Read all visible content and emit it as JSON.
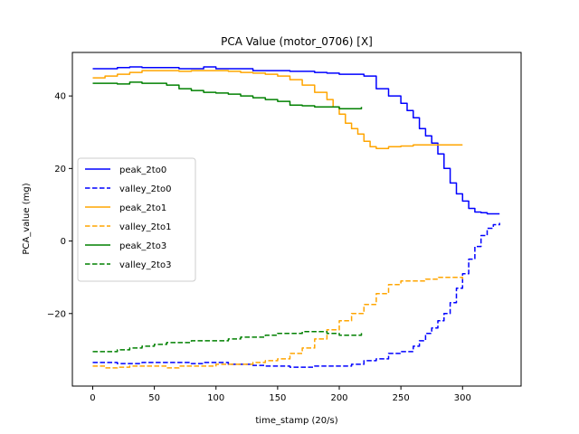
{
  "chart_data": {
    "type": "line",
    "title": "PCA Value (motor_0706) [X]",
    "xlabel": "time_stamp (20/s)",
    "ylabel": "PCA_value (mg)",
    "xlim": [
      -16.5,
      347.5
    ],
    "ylim": [
      -40,
      52
    ],
    "xticks": [
      0,
      50,
      100,
      150,
      200,
      250,
      300
    ],
    "yticks": [
      -20,
      0,
      20,
      40
    ],
    "ytick_labels": [
      "−20",
      "0",
      "20",
      "40"
    ],
    "grid": false,
    "legend_placement": "center-left",
    "series": [
      {
        "name": "peak_2to0",
        "color": "#0000ff",
        "dash": "solid",
        "x": [
          0,
          10,
          20,
          30,
          40,
          50,
          60,
          70,
          80,
          90,
          100,
          110,
          120,
          130,
          140,
          150,
          160,
          170,
          180,
          190,
          200,
          210,
          220,
          230,
          240,
          250,
          255,
          260,
          265,
          270,
          275,
          280,
          285,
          290,
          295,
          300,
          305,
          310,
          315,
          320,
          325,
          330
        ],
        "y": [
          47.5,
          47.5,
          47.8,
          48,
          47.8,
          47.8,
          47.8,
          47.5,
          47.5,
          48,
          47.5,
          47.5,
          47.5,
          47,
          47,
          47,
          46.8,
          46.8,
          46.5,
          46.3,
          46,
          46,
          45.5,
          42,
          40,
          38,
          36,
          34,
          31,
          29,
          27,
          24,
          20,
          16,
          13,
          11,
          9,
          8,
          7.8,
          7.5,
          7.5,
          7.5
        ]
      },
      {
        "name": "valley_2to0",
        "color": "#0000ff",
        "dash": "dashed",
        "x": [
          0,
          10,
          20,
          30,
          40,
          50,
          60,
          70,
          80,
          90,
          100,
          110,
          120,
          130,
          140,
          150,
          160,
          170,
          180,
          190,
          200,
          210,
          220,
          230,
          240,
          250,
          260,
          265,
          270,
          275,
          280,
          285,
          290,
          295,
          300,
          305,
          310,
          315,
          320,
          325,
          330
        ],
        "y": [
          -33.5,
          -33.5,
          -33.8,
          -33.8,
          -33.5,
          -33.5,
          -33.5,
          -33.5,
          -33.8,
          -33.5,
          -33.5,
          -34,
          -34,
          -34.3,
          -34.5,
          -34.5,
          -34.8,
          -34.8,
          -34.5,
          -34.5,
          -34.5,
          -34,
          -33,
          -32.5,
          -31,
          -30.5,
          -29,
          -27.5,
          -25.5,
          -24,
          -22,
          -20,
          -17,
          -13,
          -9,
          -5,
          -1.5,
          1.5,
          3.5,
          4.5,
          5
        ]
      },
      {
        "name": "peak_2to1",
        "color": "#ffa500",
        "dash": "solid",
        "x": [
          0,
          10,
          20,
          30,
          40,
          50,
          60,
          70,
          80,
          90,
          100,
          110,
          120,
          130,
          140,
          150,
          160,
          170,
          180,
          190,
          195,
          200,
          205,
          210,
          215,
          220,
          225,
          230,
          240,
          250,
          260,
          270,
          280,
          290,
          300
        ],
        "y": [
          45,
          45.5,
          46,
          46.5,
          47,
          47,
          47,
          46.8,
          47,
          47,
          47,
          46.8,
          46.5,
          46.3,
          46,
          45.5,
          44.5,
          43,
          41,
          39,
          37,
          35,
          32.5,
          31,
          29.5,
          27.5,
          26,
          25.5,
          26,
          26.2,
          26.5,
          26.5,
          26.5,
          26.5,
          26.5
        ]
      },
      {
        "name": "valley_2to1",
        "color": "#ffa500",
        "dash": "dashed",
        "x": [
          0,
          10,
          20,
          30,
          40,
          50,
          60,
          70,
          80,
          90,
          100,
          110,
          120,
          130,
          140,
          150,
          160,
          170,
          180,
          190,
          200,
          210,
          220,
          230,
          240,
          250,
          260,
          270,
          280,
          290,
          300
        ],
        "y": [
          -34.5,
          -35,
          -34.8,
          -34.5,
          -34.5,
          -34.5,
          -35,
          -34.5,
          -34.5,
          -34.5,
          -34,
          -34,
          -34,
          -33.5,
          -33,
          -32.5,
          -31,
          -29.5,
          -27,
          -24.5,
          -22,
          -20,
          -17.5,
          -14.5,
          -12,
          -11,
          -11,
          -10.5,
          -10,
          -10,
          -10.5
        ]
      },
      {
        "name": "peak_2to3",
        "color": "#008000",
        "dash": "solid",
        "x": [
          0,
          10,
          20,
          30,
          40,
          50,
          60,
          70,
          80,
          90,
          100,
          110,
          120,
          130,
          140,
          150,
          160,
          170,
          180,
          190,
          200,
          210,
          218
        ],
        "y": [
          43.5,
          43.5,
          43.3,
          43.8,
          43.5,
          43.5,
          43,
          42,
          41.5,
          41,
          40.8,
          40.5,
          40,
          39.5,
          39,
          38.5,
          37.5,
          37.3,
          37,
          37,
          36.5,
          36.5,
          37
        ]
      },
      {
        "name": "valley_2to3",
        "color": "#008000",
        "dash": "dashed",
        "x": [
          0,
          10,
          20,
          30,
          40,
          50,
          60,
          70,
          80,
          90,
          100,
          110,
          120,
          130,
          140,
          150,
          160,
          170,
          180,
          190,
          200,
          210,
          218
        ],
        "y": [
          -30.5,
          -30.5,
          -30,
          -29.5,
          -29,
          -28.5,
          -28,
          -28,
          -27.5,
          -27.5,
          -27.5,
          -27,
          -26.5,
          -26.5,
          -26,
          -25.5,
          -25.5,
          -25,
          -25,
          -25.5,
          -26,
          -26,
          -25
        ]
      }
    ]
  }
}
